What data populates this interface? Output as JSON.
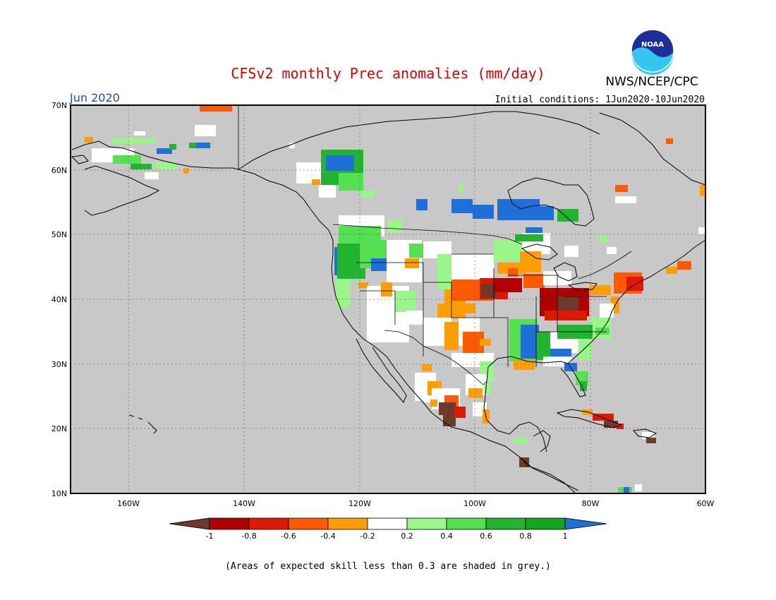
{
  "title": "CFSv2 monthly Prec anomalies (mm/day)",
  "agency": "NWS/NCEP/CPC",
  "logo_text": "NOAA",
  "month": "Jun 2020",
  "initial_conditions": "Initial conditions: 1Jun2020-10Jun2020",
  "footnote": "(Areas of expected skill less than 0.3 are shaded in grey.)",
  "lat_labels": [
    "70N",
    "60N",
    "50N",
    "40N",
    "30N",
    "20N",
    "10N"
  ],
  "lon_labels": [
    "160W",
    "140W",
    "120W",
    "100W",
    "80W",
    "60W"
  ],
  "colorbar": {
    "ticks": [
      "-1",
      "-0.8",
      "-0.6",
      "-0.4",
      "-0.2",
      "0.2",
      "0.4",
      "0.6",
      "0.8",
      "1"
    ],
    "colors": {
      "lt_-1": "#6b3a2a",
      "-1_-0.8": "#b00000",
      "-0.8_-0.6": "#dd1a00",
      "-0.6_-0.4": "#ff5a00",
      "-0.4_-0.2": "#ff9e00",
      "-0.2_0.2": "#ffffff",
      "0.2_0.4": "#9af58a",
      "0.4_0.6": "#55e052",
      "0.6_0.8": "#22b430",
      "0.8_1": "#13a420",
      "gt_1": "#1f6fd8"
    }
  },
  "colors": {
    "grey_skill_mask": "#c8c8c8",
    "title": "#dd0000",
    "month": "#1a4ad8"
  }
}
